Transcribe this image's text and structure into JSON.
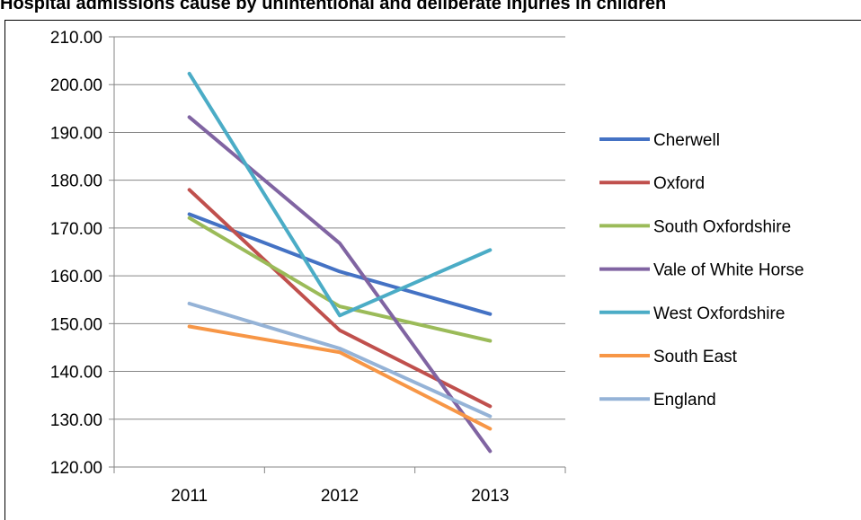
{
  "chart_data": {
    "type": "line",
    "title": "Hospital admissions  cause by unintentional and deliberate injuries in children",
    "xlabel": "",
    "ylabel": "",
    "x": [
      "2011",
      "2012",
      "2013"
    ],
    "ylim": [
      120,
      210
    ],
    "ytick_step": 10,
    "ytick_labels": [
      "120.00",
      "130.00",
      "140.00",
      "150.00",
      "160.00",
      "170.00",
      "180.00",
      "190.00",
      "200.00",
      "210.00"
    ],
    "grid": "horizontal",
    "legend_position": "right",
    "series": [
      {
        "name": "Cherwell",
        "color": "#4472C4",
        "values": [
          172.9,
          160.9,
          152.0
        ]
      },
      {
        "name": "Oxford",
        "color": "#C0504D",
        "values": [
          178.0,
          148.6,
          132.7
        ]
      },
      {
        "name": "South Oxfordshire",
        "color": "#9BBB59",
        "values": [
          172.1,
          153.6,
          146.4
        ]
      },
      {
        "name": "Vale of White Horse",
        "color": "#8064A2",
        "values": [
          193.2,
          166.8,
          123.3
        ]
      },
      {
        "name": "West Oxfordshire",
        "color": "#4BACC6",
        "values": [
          202.3,
          151.7,
          165.4
        ]
      },
      {
        "name": "South East",
        "color": "#F79646",
        "values": [
          149.4,
          144.0,
          128.0
        ]
      },
      {
        "name": "England",
        "color": "#95B3D7",
        "values": [
          154.2,
          144.8,
          130.6
        ]
      }
    ]
  }
}
